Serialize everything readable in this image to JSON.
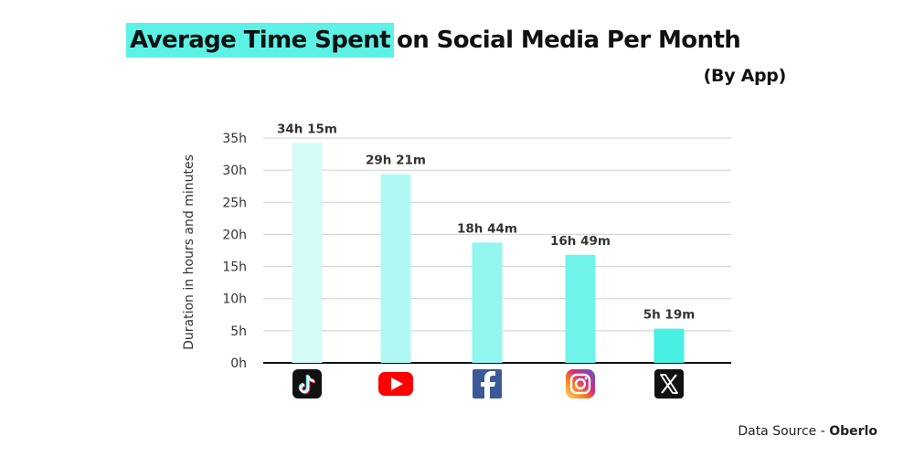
{
  "title": {
    "highlight": "Average Time Spent",
    "rest": "on Social Media Per Month"
  },
  "subtitle": "(By App)",
  "source": {
    "prefix": "Data Source -",
    "name": "Oberlo"
  },
  "chart_data": {
    "type": "bar",
    "categories": [
      "TikTok",
      "YouTube",
      "Facebook",
      "Instagram",
      "X"
    ],
    "values": [
      34.25,
      29.35,
      18.73,
      16.82,
      5.32
    ],
    "data_labels": [
      "34h 15m",
      "29h 21m",
      "18h 44m",
      "16h 49m",
      "5h 19m"
    ],
    "category_icons": [
      "tiktok-icon",
      "youtube-icon",
      "facebook-icon",
      "instagram-icon",
      "x-icon"
    ],
    "ylabel": "Duration in hours and minutes",
    "ylim": [
      0,
      35
    ],
    "yticks": [
      0,
      5,
      10,
      15,
      20,
      25,
      30,
      35
    ],
    "ytick_labels": [
      "0h",
      "5h",
      "10h",
      "15h",
      "20h",
      "25h",
      "30h",
      "35h"
    ],
    "grid": true,
    "legend": "none",
    "bar_colors": [
      "#d4fbf8",
      "#b0f8f3",
      "#92f6ef",
      "#6ff3ea",
      "#48f0e3"
    ]
  }
}
